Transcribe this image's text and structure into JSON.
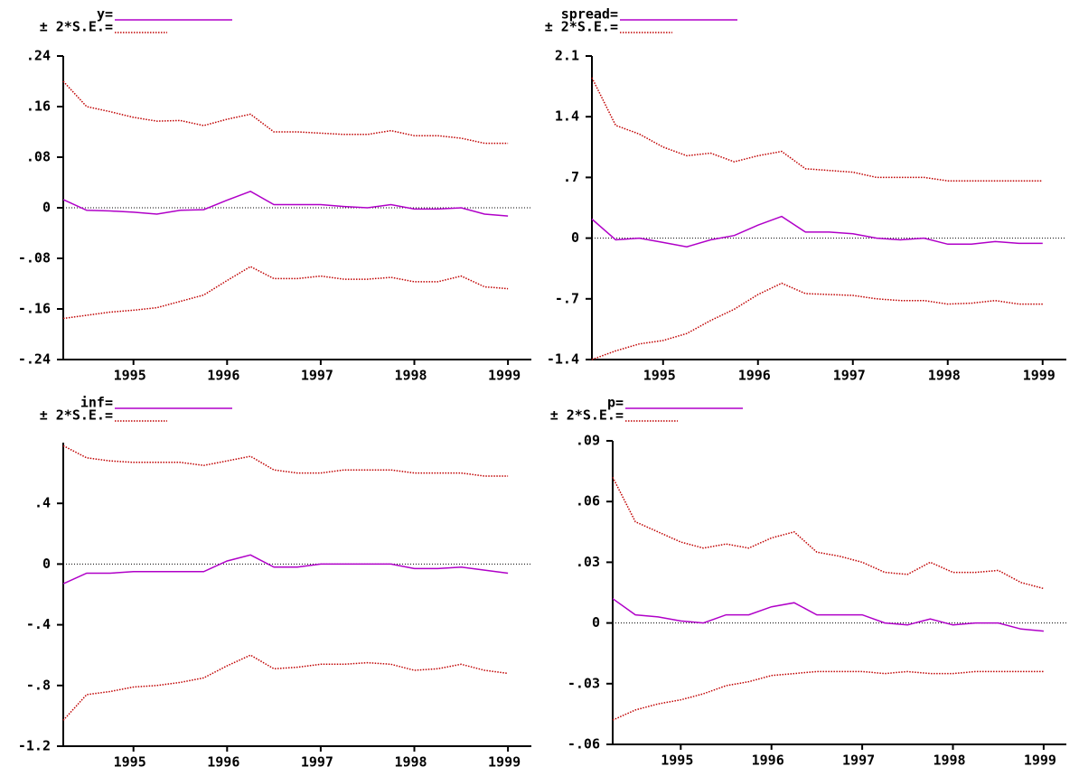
{
  "chart_data": [
    {
      "type": "line",
      "x": [
        1994.25,
        1994.5,
        1994.75,
        1995,
        1995.25,
        1995.5,
        1995.75,
        1996,
        1996.25,
        1996.5,
        1996.75,
        1997,
        1997.25,
        1997.5,
        1997.75,
        1998,
        1998.25,
        1998.5,
        1998.75,
        1999
      ],
      "xlim": [
        1994.25,
        1999.25
      ],
      "xticks": [
        1995,
        1996,
        1997,
        1998,
        1999
      ],
      "ylim": [
        -0.24,
        0.24
      ],
      "yticks": [
        {
          "value": -0.24,
          "label": "-.24"
        },
        {
          "value": -0.16,
          "label": "-.16"
        },
        {
          "value": -0.08,
          "label": "-.08"
        },
        0,
        {
          "value": 0.08,
          "label": ".08"
        },
        {
          "value": 0.16,
          "label": ".16"
        },
        {
          "value": 0.24,
          "label": ".24"
        }
      ],
      "series": [
        {
          "name": "y=",
          "color": "#b000c8",
          "values": [
            0.013,
            -0.004,
            -0.005,
            -0.007,
            -0.01,
            -0.004,
            -0.003,
            0.012,
            0.026,
            0.005,
            0.005,
            0.005,
            0.002,
            0.0,
            0.005,
            -0.002,
            -0.002,
            0.0,
            -0.01,
            -0.013
          ]
        },
        {
          "name": "± 2*S.E.=",
          "color": "#c00000",
          "upper": [
            0.2,
            0.16,
            0.152,
            0.143,
            0.137,
            0.138,
            0.13,
            0.14,
            0.148,
            0.12,
            0.12,
            0.118,
            0.116,
            0.116,
            0.122,
            0.114,
            0.114,
            0.11,
            0.102,
            0.102
          ],
          "lower": [
            -0.175,
            -0.17,
            -0.165,
            -0.162,
            -0.158,
            -0.148,
            -0.138,
            -0.115,
            -0.093,
            -0.112,
            -0.112,
            -0.108,
            -0.113,
            -0.113,
            -0.11,
            -0.117,
            -0.117,
            -0.108,
            -0.125,
            -0.128
          ]
        }
      ]
    },
    {
      "type": "line",
      "x": [
        1994.25,
        1994.5,
        1994.75,
        1995,
        1995.25,
        1995.5,
        1995.75,
        1996,
        1996.25,
        1996.5,
        1996.75,
        1997,
        1997.25,
        1997.5,
        1997.75,
        1998,
        1998.25,
        1998.5,
        1998.75,
        1999
      ],
      "xlim": [
        1994.25,
        1999.25
      ],
      "xticks": [
        1995,
        1996,
        1997,
        1998,
        1999
      ],
      "ylim": [
        -1.4,
        2.1
      ],
      "yticks": [
        -1.4,
        {
          "value": -0.7,
          "label": "-.7"
        },
        0,
        {
          "value": 0.7,
          "label": ".7"
        },
        1.4,
        2.1
      ],
      "series": [
        {
          "name": "spread=",
          "color": "#b000c8",
          "values": [
            0.22,
            -0.02,
            0.0,
            -0.05,
            -0.1,
            -0.02,
            0.03,
            0.15,
            0.25,
            0.07,
            0.07,
            0.05,
            0.0,
            -0.02,
            0.0,
            -0.07,
            -0.07,
            -0.04,
            -0.06,
            -0.06
          ]
        },
        {
          "name": "± 2*S.E.=",
          "color": "#c00000",
          "upper": [
            1.85,
            1.3,
            1.2,
            1.05,
            0.95,
            0.98,
            0.88,
            0.95,
            1.0,
            0.8,
            0.78,
            0.76,
            0.7,
            0.7,
            0.7,
            0.66,
            0.66,
            0.66,
            0.66,
            0.66
          ],
          "lower": [
            -1.4,
            -1.3,
            -1.22,
            -1.18,
            -1.1,
            -0.95,
            -0.82,
            -0.65,
            -0.52,
            -0.64,
            -0.65,
            -0.66,
            -0.7,
            -0.72,
            -0.72,
            -0.76,
            -0.75,
            -0.72,
            -0.76,
            -0.76
          ]
        }
      ]
    },
    {
      "type": "line",
      "x": [
        1994.25,
        1994.5,
        1994.75,
        1995,
        1995.25,
        1995.5,
        1995.75,
        1996,
        1996.25,
        1996.5,
        1996.75,
        1997,
        1997.25,
        1997.5,
        1997.75,
        1998,
        1998.25,
        1998.5,
        1998.75,
        1999
      ],
      "xlim": [
        1994.25,
        1999.25
      ],
      "xticks": [
        1995,
        1996,
        1997,
        1998,
        1999
      ],
      "ylim": [
        -1.2,
        0.8
      ],
      "yticks": [
        -1.2,
        {
          "value": -0.8,
          "label": "-.8"
        },
        {
          "value": -0.4,
          "label": "-.4"
        },
        0,
        {
          "value": 0.4,
          "label": ".4"
        }
      ],
      "series": [
        {
          "name": "inf=",
          "color": "#b000c8",
          "values": [
            -0.13,
            -0.06,
            -0.06,
            -0.05,
            -0.05,
            -0.05,
            -0.05,
            0.02,
            0.06,
            -0.02,
            -0.02,
            0.0,
            0.0,
            0.0,
            0.0,
            -0.03,
            -0.03,
            -0.02,
            -0.04,
            -0.06
          ]
        },
        {
          "name": "± 2*S.E.=",
          "color": "#c00000",
          "upper": [
            0.78,
            0.7,
            0.68,
            0.67,
            0.67,
            0.67,
            0.65,
            0.68,
            0.71,
            0.62,
            0.6,
            0.6,
            0.62,
            0.62,
            0.62,
            0.6,
            0.6,
            0.6,
            0.58,
            0.58
          ],
          "lower": [
            -1.03,
            -0.86,
            -0.84,
            -0.81,
            -0.8,
            -0.78,
            -0.75,
            -0.67,
            -0.6,
            -0.69,
            -0.68,
            -0.66,
            -0.66,
            -0.65,
            -0.66,
            -0.7,
            -0.69,
            -0.66,
            -0.7,
            -0.72
          ]
        }
      ]
    },
    {
      "type": "line",
      "x": [
        1994.25,
        1994.5,
        1994.75,
        1995,
        1995.25,
        1995.5,
        1995.75,
        1996,
        1996.25,
        1996.5,
        1996.75,
        1997,
        1997.25,
        1997.5,
        1997.75,
        1998,
        1998.25,
        1998.5,
        1998.75,
        1999
      ],
      "xlim": [
        1994.25,
        1999.25
      ],
      "xticks": [
        1995,
        1996,
        1997,
        1998,
        1999
      ],
      "ylim": [
        -0.06,
        0.09
      ],
      "yticks": [
        {
          "value": -0.06,
          "label": "-.06"
        },
        {
          "value": -0.03,
          "label": "-.03"
        },
        0,
        {
          "value": 0.03,
          "label": ".03"
        },
        {
          "value": 0.06,
          "label": ".06"
        },
        {
          "value": 0.09,
          "label": ".09"
        }
      ],
      "series": [
        {
          "name": "p=",
          "color": "#b000c8",
          "values": [
            0.012,
            0.004,
            0.003,
            0.001,
            0.0,
            0.004,
            0.004,
            0.008,
            0.01,
            0.004,
            0.004,
            0.004,
            0.0,
            -0.001,
            0.002,
            -0.001,
            0.0,
            0.0,
            -0.003,
            -0.004
          ]
        },
        {
          "name": "± 2*S.E.=",
          "color": "#c00000",
          "upper": [
            0.072,
            0.05,
            0.045,
            0.04,
            0.037,
            0.039,
            0.037,
            0.042,
            0.045,
            0.035,
            0.033,
            0.03,
            0.025,
            0.024,
            0.03,
            0.025,
            0.025,
            0.026,
            0.02,
            0.017
          ],
          "lower": [
            -0.048,
            -0.043,
            -0.04,
            -0.038,
            -0.035,
            -0.031,
            -0.029,
            -0.026,
            -0.025,
            -0.024,
            -0.024,
            -0.024,
            -0.025,
            -0.024,
            -0.025,
            -0.025,
            -0.024,
            -0.024,
            -0.024,
            -0.024
          ]
        }
      ]
    }
  ]
}
